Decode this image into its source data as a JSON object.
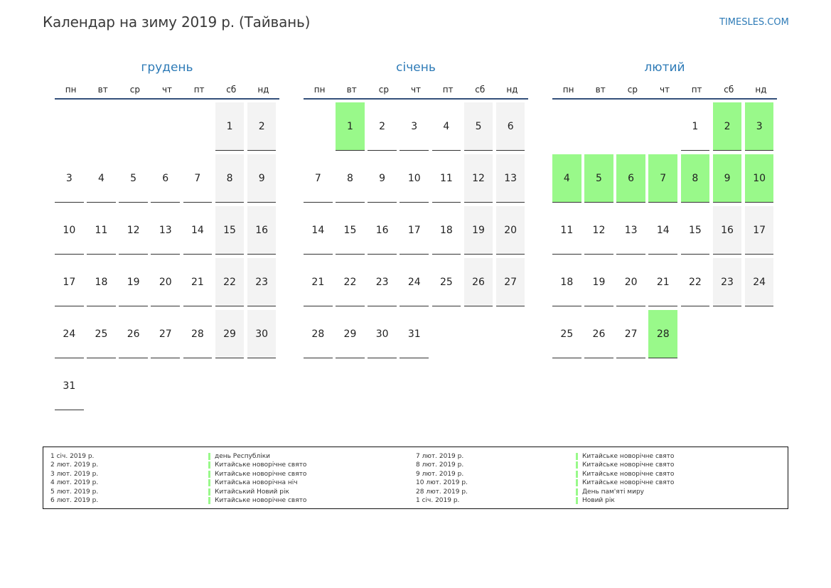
{
  "title": "Календар на зиму 2019 р. (Тайвань)",
  "site": "TIMESLES.COM",
  "colors": {
    "accent": "#2e7bb7",
    "holiday": "#99f98a",
    "weekend": "#f3f3f3",
    "rule": "#34507a"
  },
  "weekdays": [
    "пн",
    "вт",
    "ср",
    "чт",
    "пт",
    "сб",
    "нд"
  ],
  "months": [
    {
      "name": "грудень",
      "weeks": [
        [
          "",
          "",
          "",
          "",
          "",
          "1",
          "2"
        ],
        [
          "3",
          "4",
          "5",
          "6",
          "7",
          "8",
          "9"
        ],
        [
          "10",
          "11",
          "12",
          "13",
          "14",
          "15",
          "16"
        ],
        [
          "17",
          "18",
          "19",
          "20",
          "21",
          "22",
          "23"
        ],
        [
          "24",
          "25",
          "26",
          "27",
          "28",
          "29",
          "30"
        ],
        [
          "31",
          "",
          "",
          "",
          "",
          "",
          ""
        ]
      ],
      "holidays": []
    },
    {
      "name": "січень",
      "weeks": [
        [
          "",
          "1",
          "2",
          "3",
          "4",
          "5",
          "6"
        ],
        [
          "7",
          "8",
          "9",
          "10",
          "11",
          "12",
          "13"
        ],
        [
          "14",
          "15",
          "16",
          "17",
          "18",
          "19",
          "20"
        ],
        [
          "21",
          "22",
          "23",
          "24",
          "25",
          "26",
          "27"
        ],
        [
          "28",
          "29",
          "30",
          "31",
          "",
          "",
          ""
        ]
      ],
      "holidays": [
        "1"
      ]
    },
    {
      "name": "лютий",
      "weeks": [
        [
          "",
          "",
          "",
          "",
          "1",
          "2",
          "3"
        ],
        [
          "4",
          "5",
          "6",
          "7",
          "8",
          "9",
          "10"
        ],
        [
          "11",
          "12",
          "13",
          "14",
          "15",
          "16",
          "17"
        ],
        [
          "18",
          "19",
          "20",
          "21",
          "22",
          "23",
          "24"
        ],
        [
          "25",
          "26",
          "27",
          "28",
          "",
          "",
          ""
        ]
      ],
      "holidays": [
        "2",
        "3",
        "4",
        "5",
        "6",
        "7",
        "8",
        "9",
        "10",
        "28"
      ]
    }
  ],
  "legend": {
    "left": [
      {
        "date": "1 січ. 2019 р.",
        "name": "день Республіки"
      },
      {
        "date": "2 лют. 2019 р.",
        "name": "Китайське новорічне свято"
      },
      {
        "date": "3 лют. 2019 р.",
        "name": "Китайське новорічне свято"
      },
      {
        "date": "4 лют. 2019 р.",
        "name": "Китайська новорічна ніч"
      },
      {
        "date": "5 лют. 2019 р.",
        "name": "Китайський Новий рік"
      },
      {
        "date": "6 лют. 2019 р.",
        "name": "Китайське новорічне свято"
      }
    ],
    "right": [
      {
        "date": "7 лют. 2019 р.",
        "name": "Китайське новорічне свято"
      },
      {
        "date": "8 лют. 2019 р.",
        "name": "Китайське новорічне свято"
      },
      {
        "date": "9 лют. 2019 р.",
        "name": "Китайське новорічне свято"
      },
      {
        "date": "10 лют. 2019 р.",
        "name": "Китайське новорічне свято"
      },
      {
        "date": "28 лют. 2019 р.",
        "name": "День пам'яті миру"
      },
      {
        "date": "1 січ. 2019 р.",
        "name": "Новий рік"
      }
    ]
  }
}
